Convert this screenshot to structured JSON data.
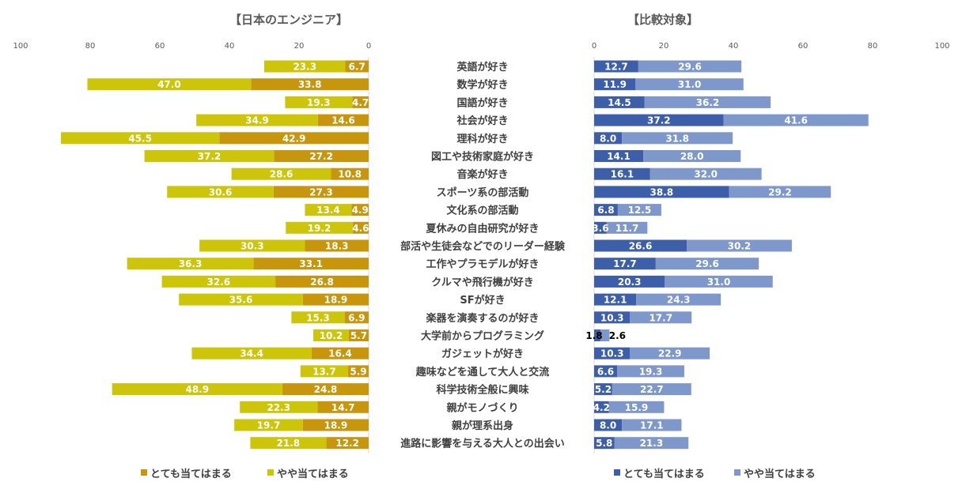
{
  "chart_data": [
    {
      "type": "bar",
      "orientation": "horizontal",
      "stacked": true,
      "title": "【日本のエンジニア】",
      "xlim": [
        0,
        100
      ],
      "x_reversed": true,
      "ticks": [
        100,
        80,
        60,
        40,
        20,
        0
      ],
      "grid": false,
      "legend_position": "bottom",
      "categories": [
        "英語が好き",
        "数学が好き",
        "国語が好き",
        "社会が好き",
        "理科が好き",
        "図工や技術家庭が好き",
        "音楽が好き",
        "スポーツ系の部活動",
        "文化系の部活動",
        "夏休みの自由研究が好き",
        "部活や生徒会などでのリーダー経験",
        "工作やプラモデルが好き",
        "クルマや飛行機が好き",
        "SFが好き",
        "楽器を演奏するのが好き",
        "大学前からプログラミング",
        "ガジェットが好き",
        "趣味などを通して大人と交流",
        "科学技術全般に興味",
        "親がモノづくり",
        "親が理系出身",
        "進路に影響を与える大人との出会い"
      ],
      "series": [
        {
          "name": "とても当てはまる",
          "color": "#c8960c",
          "values": [
            6.7,
            33.8,
            4.7,
            14.6,
            42.9,
            27.2,
            10.8,
            27.3,
            4.9,
            4.6,
            18.3,
            33.1,
            26.8,
            18.9,
            6.9,
            5.7,
            16.4,
            5.9,
            24.8,
            14.7,
            18.9,
            12.2
          ]
        },
        {
          "name": "やや当てはまる",
          "color": "#cdc50a",
          "values": [
            23.3,
            47.0,
            19.3,
            34.9,
            45.5,
            37.2,
            28.6,
            30.6,
            13.4,
            19.2,
            30.3,
            36.3,
            32.6,
            35.6,
            15.3,
            10.2,
            34.4,
            13.7,
            48.9,
            22.3,
            19.7,
            21.8
          ]
        }
      ]
    },
    {
      "type": "bar",
      "orientation": "horizontal",
      "stacked": true,
      "title": "【比較対象】",
      "xlim": [
        0,
        100
      ],
      "x_reversed": false,
      "ticks": [
        0,
        20,
        40,
        60,
        80,
        100
      ],
      "grid": false,
      "legend_position": "bottom",
      "categories": [
        "英語が好き",
        "数学が好き",
        "国語が好き",
        "社会が好き",
        "理科が好き",
        "図工や技術家庭が好き",
        "音楽が好き",
        "スポーツ系の部活動",
        "文化系の部活動",
        "夏休みの自由研究が好き",
        "部活や生徒会などでのリーダー経験",
        "工作やプラモデルが好き",
        "クルマや飛行機が好き",
        "SFが好き",
        "楽器を演奏するのが好き",
        "大学前からプログラミング",
        "ガジェットが好き",
        "趣味などを通して大人と交流",
        "科学技術全般に興味",
        "親がモノづくり",
        "親が理系出身",
        "進路に影響を与える大人との出会い"
      ],
      "series": [
        {
          "name": "とても当てはまる",
          "color": "#3d5faa",
          "values": [
            12.7,
            11.9,
            14.5,
            37.2,
            8.0,
            14.1,
            16.1,
            38.8,
            6.8,
            3.6,
            26.6,
            17.7,
            20.3,
            12.1,
            10.3,
            1.8,
            10.3,
            6.6,
            5.2,
            4.2,
            8.0,
            5.8
          ]
        },
        {
          "name": "やや当てはまる",
          "color": "#7f98cc",
          "values": [
            29.6,
            31.0,
            36.2,
            41.6,
            31.8,
            28.0,
            32.0,
            29.2,
            12.5,
            11.7,
            30.2,
            29.6,
            31.0,
            24.3,
            17.7,
            2.6,
            22.9,
            19.3,
            22.7,
            15.9,
            17.1,
            21.3
          ]
        }
      ]
    }
  ]
}
